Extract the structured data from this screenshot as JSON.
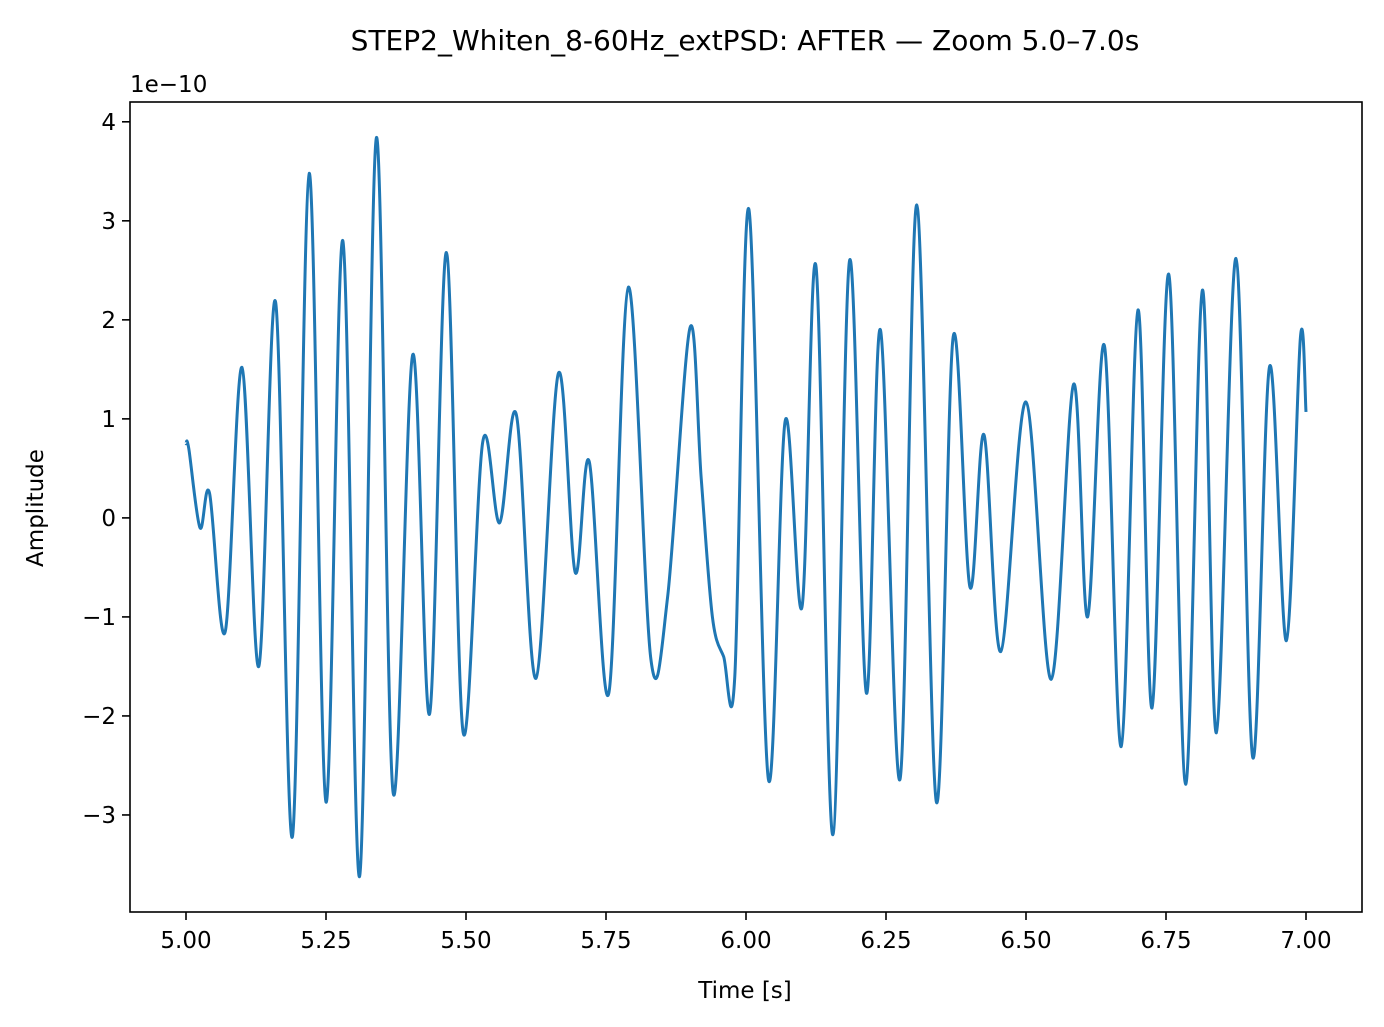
{
  "chart_data": {
    "type": "line",
    "title": "STEP2_Whiten_8-60Hz_extPSD: AFTER — Zoom 5.0–7.0s",
    "xlabel": "Time [s]",
    "ylabel": "Amplitude",
    "y_offset_label": "1e−10",
    "xlim": [
      4.9,
      7.1
    ],
    "ylim": [
      -3.98,
      4.2
    ],
    "x_ticks": [
      5.0,
      5.25,
      5.5,
      5.75,
      6.0,
      6.25,
      6.5,
      6.75,
      7.0
    ],
    "x_tick_labels": [
      "5.00",
      "5.25",
      "5.50",
      "5.75",
      "6.00",
      "6.25",
      "6.50",
      "6.75",
      "7.00"
    ],
    "y_ticks": [
      -3,
      -2,
      -1,
      0,
      1,
      2,
      3,
      4
    ],
    "y_tick_labels": [
      "−3",
      "−2",
      "−1",
      "0",
      "1",
      "2",
      "3",
      "4"
    ],
    "grid": false,
    "line_color": "#1f77b4",
    "series": [
      {
        "name": "",
        "x": [
          5.0,
          5.005,
          5.025,
          5.042,
          5.07,
          5.1,
          5.13,
          5.16,
          5.19,
          5.22,
          5.25,
          5.28,
          5.31,
          5.34,
          5.37,
          5.405,
          5.435,
          5.465,
          5.495,
          5.53,
          5.56,
          5.59,
          5.625,
          5.665,
          5.695,
          5.72,
          5.755,
          5.79,
          5.83,
          5.86,
          5.9,
          5.92,
          5.94,
          5.96,
          5.98,
          6.005,
          6.04,
          6.07,
          6.1,
          6.125,
          6.155,
          6.185,
          6.215,
          6.24,
          6.275,
          6.305,
          6.34,
          6.37,
          6.4,
          6.425,
          6.455,
          6.5,
          6.545,
          6.585,
          6.61,
          6.64,
          6.67,
          6.7,
          6.725,
          6.755,
          6.785,
          6.815,
          6.84,
          6.875,
          6.905,
          6.935,
          6.965,
          6.99,
          7.0
        ],
        "values": [
          0.75,
          0.7,
          -0.1,
          0.25,
          -1.15,
          1.52,
          -1.5,
          2.18,
          -3.22,
          3.48,
          -2.87,
          2.8,
          -3.62,
          3.84,
          -2.78,
          1.65,
          -1.98,
          2.68,
          -2.17,
          0.77,
          -0.05,
          1.04,
          -1.62,
          1.46,
          -0.55,
          0.57,
          -1.77,
          2.33,
          -1.42,
          -0.8,
          1.92,
          0.4,
          -1.0,
          -1.4,
          -1.6,
          3.12,
          -2.64,
          0.98,
          -0.9,
          2.54,
          -3.2,
          2.6,
          -1.77,
          1.9,
          -2.64,
          3.16,
          -2.87,
          1.83,
          -0.7,
          0.84,
          -1.35,
          1.17,
          -1.63,
          1.35,
          -1.0,
          1.74,
          -2.31,
          2.1,
          -1.92,
          2.46,
          -2.69,
          2.3,
          -2.17,
          2.62,
          -2.42,
          1.53,
          -1.24,
          1.82,
          1.07
        ]
      }
    ]
  }
}
